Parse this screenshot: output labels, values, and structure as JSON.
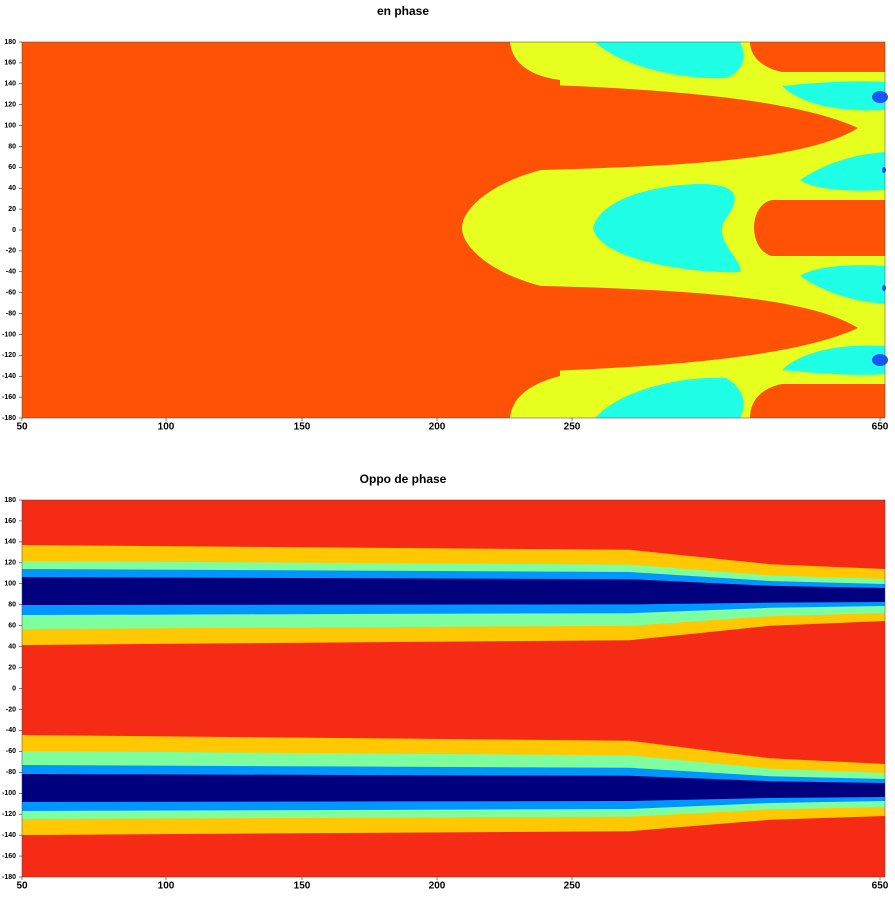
{
  "chart_data": [
    {
      "type": "contour",
      "title": "en phase",
      "ylim": [
        -180,
        180
      ],
      "yticks": [
        180,
        160,
        140,
        120,
        100,
        80,
        60,
        40,
        20,
        0,
        -20,
        -40,
        -60,
        -80,
        -100,
        -120,
        -140,
        -160,
        -180
      ],
      "xticks": [
        50,
        100,
        150,
        200,
        250,
        650
      ]
    },
    {
      "type": "contour",
      "title": "Oppo de phase",
      "ylim": [
        -180,
        180
      ],
      "yticks": [
        180,
        160,
        140,
        120,
        100,
        80,
        60,
        40,
        20,
        0,
        -20,
        -40,
        -60,
        -80,
        -100,
        -120,
        -140,
        -160,
        -180
      ],
      "xticks": [
        50,
        100,
        150,
        200,
        250,
        650
      ]
    }
  ]
}
